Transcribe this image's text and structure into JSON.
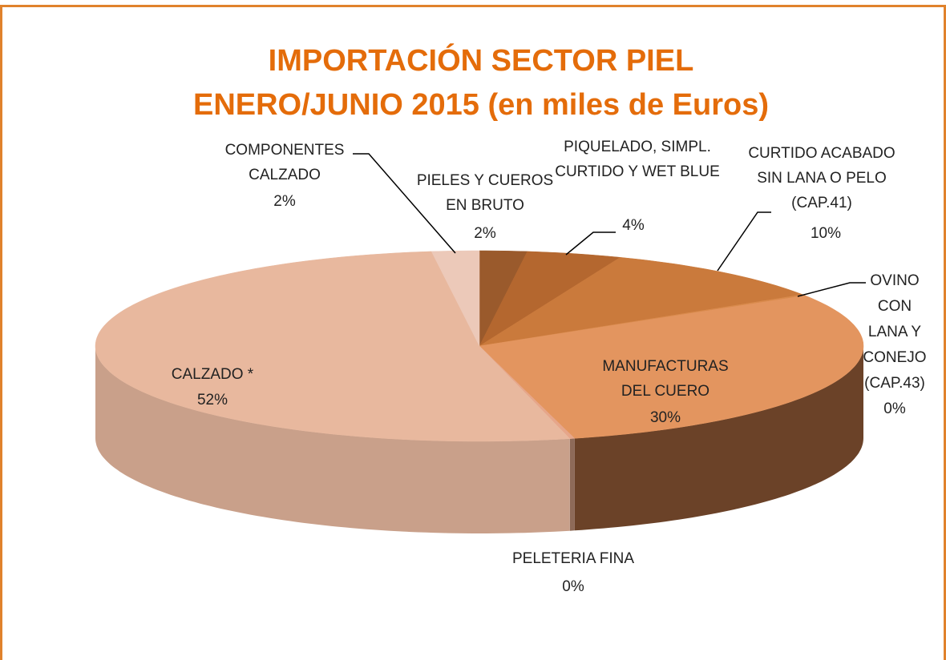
{
  "chart_data": {
    "type": "pie",
    "title": [
      "IMPORTACIÓN SECTOR PIEL",
      "ENERO/JUNIO  2015 (en miles de Euros)"
    ],
    "categories": [
      "PIELES Y CUEROS EN BRUTO",
      "PIQUELADO, SIMPL. CURTIDO Y WET BLUE",
      "CURTIDO ACABADO SIN LANA O PELO (CAP.41)",
      "OVINO CON LANA Y CONEJO (CAP.43)",
      "MANUFACTURAS DEL CUERO",
      "PELETERIA FINA",
      "CALZADO  *",
      "COMPONENTES CALZADO"
    ],
    "values": [
      2,
      4,
      10,
      0.2,
      30,
      0.2,
      52,
      2
    ],
    "value_labels": [
      "2%",
      "4%",
      "10%",
      "0%",
      "30%",
      "0%",
      "52%",
      "2%"
    ],
    "colors": [
      "#9a5a2c",
      "#b4672f",
      "#ca7a3c",
      "#d98a4c",
      "#e3955f",
      "#e6a68a",
      "#e8b89e",
      "#ecc9b9"
    ],
    "side_colors": [
      "#6e3f1e",
      "#7e4620",
      "#8a5028",
      "#8c5630",
      "#6b4228",
      "#8e6a58",
      "#c9a08a",
      "#d0ad9c"
    ]
  }
}
